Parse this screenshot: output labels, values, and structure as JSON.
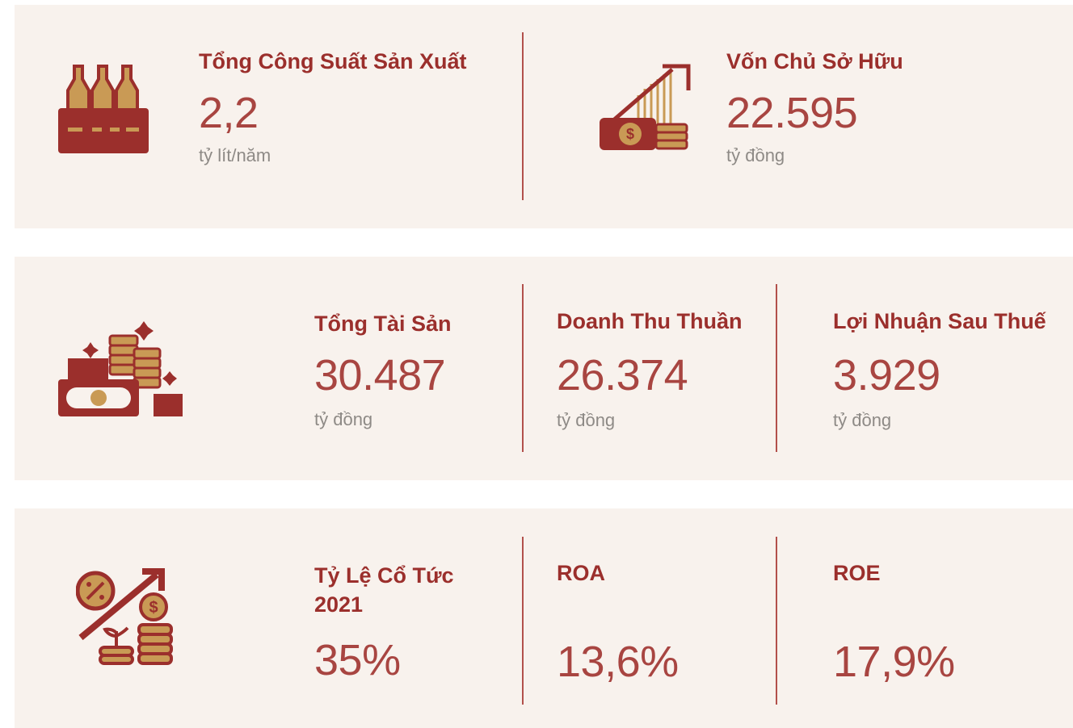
{
  "panels": [
    {
      "items": [
        {
          "title": "Tổng Công Suất Sản Xuất",
          "value": "2,2",
          "unit": "tỷ lít/năm"
        },
        {
          "title": "Vốn Chủ Sở Hữu",
          "value": "22.595",
          "unit": "tỷ đồng"
        }
      ]
    },
    {
      "items": [
        {
          "title": "Tổng Tài Sản",
          "value": "30.487",
          "unit": "tỷ đồng"
        },
        {
          "title": "Doanh Thu Thuần",
          "value": "26.374",
          "unit": "tỷ đồng"
        },
        {
          "title": "Lợi Nhuận Sau Thuế",
          "value": "3.929",
          "unit": "tỷ đồng"
        }
      ]
    },
    {
      "items": [
        {
          "title": "Tỷ Lệ Cổ Tức 2021",
          "value": "35%"
        },
        {
          "title": "ROA",
          "value": "13,6%"
        },
        {
          "title": "ROE",
          "value": "17,9%"
        }
      ]
    }
  ]
}
